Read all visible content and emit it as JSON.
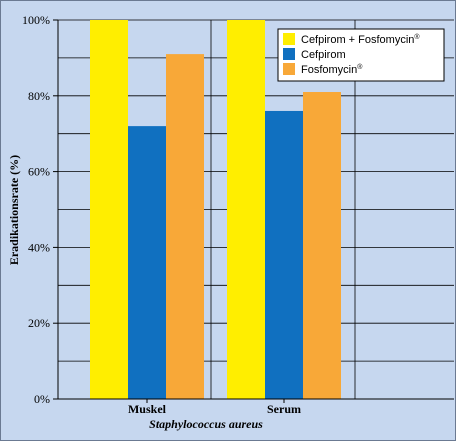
{
  "chart_data": {
    "type": "bar",
    "categories": [
      "Muskel",
      "Serum"
    ],
    "series": [
      {
        "name": "Cefpirom + Fosfomycin",
        "name_sup": "®",
        "color": "#ffee00",
        "values": [
          100,
          100
        ]
      },
      {
        "name": "Cefpirom",
        "name_sup": "",
        "color": "#1070c0",
        "values": [
          72,
          76
        ]
      },
      {
        "name": "Fosfomycin",
        "name_sup": "®",
        "color": "#f8a838",
        "values": [
          91,
          81
        ]
      }
    ],
    "xlabel": "Staphylococcus aureus",
    "ylabel": "Eradikationsrate (%)",
    "ylim": [
      0,
      100
    ],
    "yticks": [
      0,
      20,
      40,
      60,
      80,
      100
    ],
    "ytick_labels": [
      "0%",
      "20%",
      "40%",
      "60%",
      "80%",
      "100%"
    ],
    "grid": true,
    "legend_position": "top-right",
    "background_color": "#c6d7ef"
  }
}
